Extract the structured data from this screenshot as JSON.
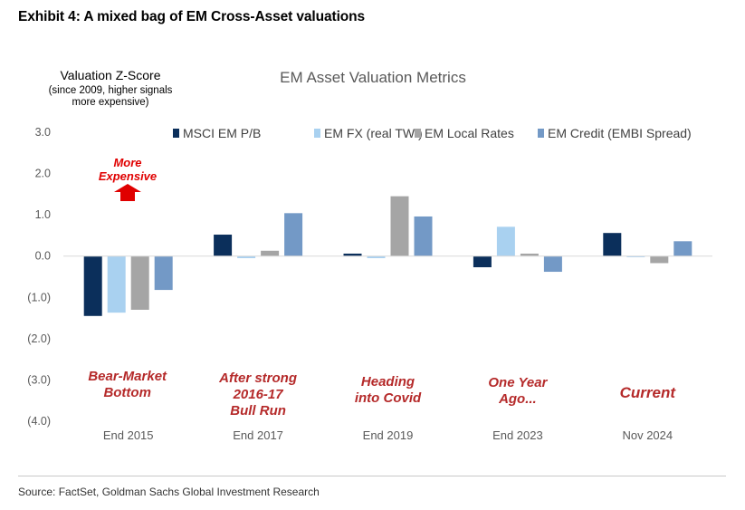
{
  "exhibit_title": "Exhibit 4: A mixed bag of EM Cross-Asset valuations",
  "source": "Source: FactSet, Goldman Sachs Global Investment Research",
  "chart_data": {
    "type": "bar",
    "title": "EM Asset Valuation Metrics",
    "ylabel_lines": [
      "Valuation Z-Score",
      "(since 2009, higher signals",
      "more expensive)"
    ],
    "ylim": [
      -4,
      3
    ],
    "yticks": [
      3,
      2,
      1,
      0,
      -1,
      -2,
      -3,
      -4
    ],
    "ytick_labels": [
      "3.0",
      "2.0",
      "1.0",
      "0.0",
      "(1.0)",
      "(2.0)",
      "(3.0)",
      "(4.0)"
    ],
    "grid": false,
    "legend_position": "top",
    "categories": [
      "End 2015",
      "End 2017",
      "End 2019",
      "End 2023",
      "Nov 2024"
    ],
    "series": [
      {
        "name": "MSCI EM P/B",
        "color": "#0b2f5b",
        "values": [
          -1.45,
          0.52,
          0.06,
          -0.27,
          0.56
        ]
      },
      {
        "name": "EM FX (real TWI)",
        "color": "#a9d1f0",
        "values": [
          -1.37,
          -0.05,
          -0.05,
          0.71,
          -0.01
        ]
      },
      {
        "name": "EM Local Rates",
        "color": "#a5a5a5",
        "values": [
          -1.3,
          0.13,
          1.45,
          0.06,
          -0.17
        ]
      },
      {
        "name": "EM Credit (EMBI Spread)",
        "color": "#7399c6",
        "values": [
          -0.82,
          1.04,
          0.96,
          -0.38,
          0.36
        ]
      }
    ],
    "annotations": {
      "more_expensive": [
        "More",
        "Expensive"
      ],
      "arrow_color": "#e00000",
      "annotation_color": "#b52a2a",
      "period_labels": [
        [
          "Bear-Market",
          "Bottom"
        ],
        [
          "After strong",
          "2016-17",
          "Bull Run"
        ],
        [
          "Heading",
          "into Covid"
        ],
        [
          "One Year",
          "Ago..."
        ],
        [
          "Current"
        ]
      ]
    }
  }
}
